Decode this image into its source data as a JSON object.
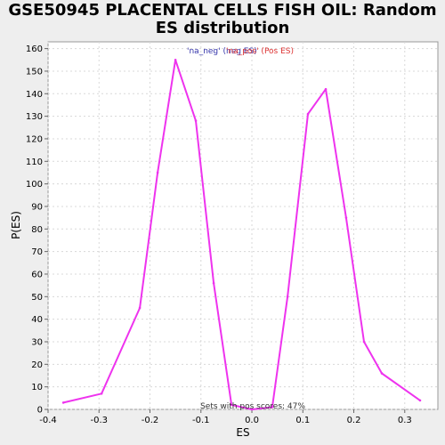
{
  "page": {
    "title_line1": "GSE50945 PLACENTAL CELLS FISH OIL: Random",
    "title_line2": "ES distribution"
  },
  "colors": {
    "line": "#ee33ee",
    "plot_bg": "#ffffff",
    "grid": "#d8d8d8",
    "legend_neg": "#3333aa",
    "legend_pos": "#dd3333"
  },
  "chart_data": {
    "type": "line",
    "xlabel": "ES",
    "ylabel": "P(ES)",
    "xlim": [
      -0.4,
      0.365
    ],
    "ylim": [
      0,
      163
    ],
    "xticks": [
      -0.4,
      -0.3,
      -0.2,
      -0.1,
      0.0,
      0.1,
      0.2,
      0.3
    ],
    "xtick_labels": [
      "-0.4",
      "-0.3",
      "-0.2",
      "-0.1",
      "0.0",
      "0.1",
      "0.2",
      "0.3"
    ],
    "yticks": [
      0,
      10,
      20,
      30,
      40,
      50,
      60,
      70,
      80,
      90,
      100,
      110,
      120,
      130,
      140,
      150,
      160
    ],
    "grid": true,
    "series": [
      {
        "x": [
          -0.37,
          -0.295,
          -0.22,
          -0.185,
          -0.15,
          -0.11,
          -0.075,
          -0.04,
          0.0,
          0.04,
          0.07,
          0.11,
          0.145,
          0.185,
          0.22,
          0.255,
          0.33
        ],
        "y": [
          3,
          7,
          45,
          105,
          155,
          128,
          56,
          2,
          0,
          1,
          50,
          131,
          142,
          85,
          30,
          16,
          4
        ]
      }
    ],
    "legend": {
      "placement": "top",
      "entries": [
        {
          "label": "'na_neg' (neg ES)",
          "color": "#3333aa"
        },
        {
          "label": "'na_pos' (Pos ES)",
          "color": "#dd3333"
        }
      ]
    },
    "annotation": "Sets with pos scores: 47%"
  }
}
